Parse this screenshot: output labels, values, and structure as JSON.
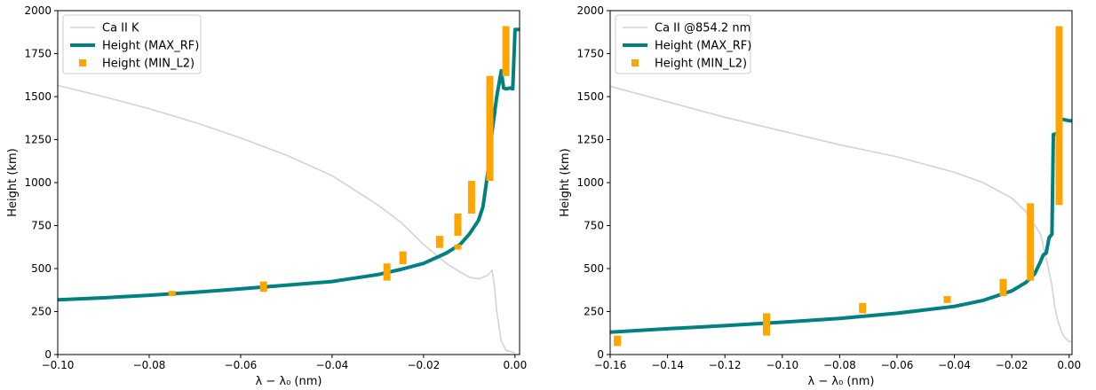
{
  "chart_data": [
    {
      "type": "line",
      "title": "",
      "xlabel": "λ − λ₀ (nm)",
      "ylabel": "Height (km)",
      "xlim": [
        -0.1,
        0.001
      ],
      "ylim": [
        0,
        2000
      ],
      "grid": false,
      "legend_position": "top-left",
      "xticks": [
        -0.1,
        -0.08,
        -0.06,
        -0.04,
        -0.02,
        0.0
      ],
      "xtick_labels": [
        "−0.10",
        "−0.08",
        "−0.06",
        "−0.04",
        "−0.02",
        "0.00"
      ],
      "yticks": [
        0,
        250,
        500,
        750,
        1000,
        1250,
        1500,
        1750,
        2000
      ],
      "ytick_labels": [
        "0",
        "250",
        "500",
        "750",
        "1000",
        "1250",
        "1500",
        "1750",
        "2000"
      ],
      "series": [
        {
          "name": "Ca II K",
          "kind": "line",
          "color": "#d3d3d3",
          "points": [
            [
              -0.1,
              1565
            ],
            [
              -0.09,
              1500
            ],
            [
              -0.08,
              1430
            ],
            [
              -0.07,
              1350
            ],
            [
              -0.06,
              1260
            ],
            [
              -0.05,
              1160
            ],
            [
              -0.04,
              1040
            ],
            [
              -0.03,
              870
            ],
            [
              -0.025,
              770
            ],
            [
              -0.02,
              640
            ],
            [
              -0.015,
              530
            ],
            [
              -0.012,
              480
            ],
            [
              -0.01,
              450
            ],
            [
              -0.008,
              440
            ],
            [
              -0.006,
              460
            ],
            [
              -0.005,
              490
            ],
            [
              -0.0045,
              400
            ],
            [
              -0.004,
              250
            ],
            [
              -0.003,
              80
            ],
            [
              -0.002,
              25
            ],
            [
              0.0,
              10
            ]
          ]
        },
        {
          "name": "Height (MAX_RF)",
          "kind": "line",
          "color": "#008080",
          "points": [
            [
              -0.1,
              318
            ],
            [
              -0.09,
              330
            ],
            [
              -0.08,
              345
            ],
            [
              -0.07,
              362
            ],
            [
              -0.06,
              382
            ],
            [
              -0.05,
              403
            ],
            [
              -0.04,
              425
            ],
            [
              -0.035,
              445
            ],
            [
              -0.03,
              465
            ],
            [
              -0.025,
              495
            ],
            [
              -0.02,
              530
            ],
            [
              -0.015,
              590
            ],
            [
              -0.012,
              640
            ],
            [
              -0.01,
              700
            ],
            [
              -0.008,
              780
            ],
            [
              -0.007,
              860
            ],
            [
              -0.006,
              1050
            ],
            [
              -0.005,
              1300
            ],
            [
              -0.004,
              1500
            ],
            [
              -0.003,
              1650
            ],
            [
              -0.0025,
              1550
            ],
            [
              -0.002,
              1545
            ],
            [
              -0.001,
              1550
            ],
            [
              -0.0005,
              1545
            ],
            [
              0.0,
              1890
            ],
            [
              0.001,
              1890
            ]
          ]
        },
        {
          "name": "Height (MIN_L2)",
          "kind": "bars",
          "color": "#ffa500",
          "segments": [
            [
              -0.075,
              340,
              370
            ],
            [
              -0.055,
              365,
              425
            ],
            [
              -0.028,
              430,
              530
            ],
            [
              -0.0245,
              525,
              600
            ],
            [
              -0.0165,
              620,
              690
            ],
            [
              -0.0125,
              610,
              640
            ],
            [
              -0.0125,
              690,
              820
            ],
            [
              -0.0095,
              820,
              1010
            ],
            [
              -0.0055,
              1010,
              1620
            ],
            [
              -0.002,
              1620,
              1910
            ]
          ]
        }
      ]
    },
    {
      "type": "line",
      "title": "",
      "xlabel": "λ − λ₀ (nm)",
      "ylabel": "Height (km)",
      "xlim": [
        -0.16,
        0.001
      ],
      "ylim": [
        0,
        2000
      ],
      "grid": false,
      "legend_position": "top-left",
      "xticks": [
        -0.16,
        -0.14,
        -0.12,
        -0.1,
        -0.08,
        -0.06,
        -0.04,
        -0.02,
        0.0
      ],
      "xtick_labels": [
        "−0.16",
        "−0.14",
        "−0.12",
        "−0.10",
        "−0.08",
        "−0.06",
        "−0.04",
        "−0.02",
        "0.00"
      ],
      "yticks": [
        0,
        250,
        500,
        750,
        1000,
        1250,
        1500,
        1750,
        2000
      ],
      "ytick_labels": [
        "0",
        "250",
        "500",
        "750",
        "1000",
        "1250",
        "1500",
        "1750",
        "2000"
      ],
      "series": [
        {
          "name": "Ca II @854.2 nm",
          "kind": "line",
          "color": "#d3d3d3",
          "points": [
            [
              -0.16,
              1560
            ],
            [
              -0.14,
              1470
            ],
            [
              -0.12,
              1380
            ],
            [
              -0.1,
              1300
            ],
            [
              -0.08,
              1220
            ],
            [
              -0.06,
              1150
            ],
            [
              -0.04,
              1060
            ],
            [
              -0.03,
              1000
            ],
            [
              -0.02,
              910
            ],
            [
              -0.015,
              830
            ],
            [
              -0.01,
              700
            ],
            [
              -0.008,
              560
            ],
            [
              -0.006,
              400
            ],
            [
              -0.005,
              280
            ],
            [
              -0.004,
              200
            ],
            [
              -0.003,
              150
            ],
            [
              -0.002,
              110
            ],
            [
              -0.001,
              90
            ],
            [
              0.0,
              75
            ],
            [
              0.001,
              75
            ]
          ]
        },
        {
          "name": "Height (MAX_RF)",
          "kind": "line",
          "color": "#008080",
          "points": [
            [
              -0.16,
              130
            ],
            [
              -0.14,
              150
            ],
            [
              -0.12,
              168
            ],
            [
              -0.1,
              188
            ],
            [
              -0.08,
              210
            ],
            [
              -0.06,
              240
            ],
            [
              -0.04,
              280
            ],
            [
              -0.03,
              315
            ],
            [
              -0.02,
              370
            ],
            [
              -0.015,
              420
            ],
            [
              -0.012,
              470
            ],
            [
              -0.01,
              540
            ],
            [
              -0.009,
              580
            ],
            [
              -0.008,
              590
            ],
            [
              -0.007,
              680
            ],
            [
              -0.006,
              700
            ],
            [
              -0.0055,
              1280
            ],
            [
              -0.004,
              1285
            ],
            [
              -0.003,
              1370
            ],
            [
              0.0,
              1360
            ],
            [
              0.001,
              1360
            ]
          ]
        },
        {
          "name": "Height (MIN_L2)",
          "kind": "bars",
          "color": "#ffa500",
          "segments": [
            [
              -0.1575,
              50,
              110
            ],
            [
              -0.1055,
              110,
              240
            ],
            [
              -0.072,
              240,
              300
            ],
            [
              -0.0425,
              300,
              340
            ],
            [
              -0.023,
              340,
              440
            ],
            [
              -0.0135,
              430,
              880
            ],
            [
              -0.0035,
              870,
              1910
            ]
          ]
        }
      ]
    }
  ]
}
